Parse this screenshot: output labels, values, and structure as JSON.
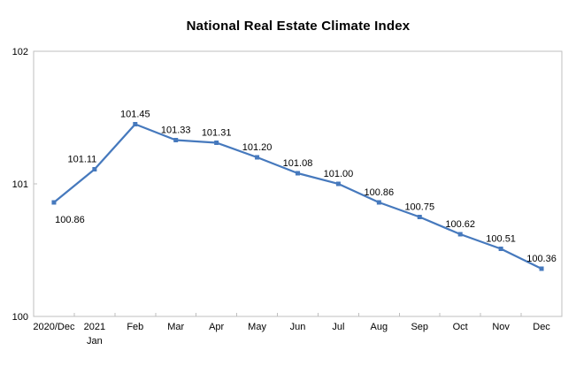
{
  "title": "National Real Estate Climate Index",
  "chart_data": {
    "type": "line",
    "title": "National Real Estate Climate Index",
    "categories": [
      "2020/Dec",
      "2021\nJan",
      "Feb",
      "Mar",
      "Apr",
      "May",
      "Jun",
      "Jul",
      "Aug",
      "Sep",
      "Oct",
      "Nov",
      "Dec"
    ],
    "values": [
      100.86,
      101.11,
      101.45,
      101.33,
      101.31,
      101.2,
      101.08,
      101.0,
      100.86,
      100.75,
      100.62,
      100.51,
      100.36
    ],
    "data_labels": [
      "100.86",
      "101.11",
      "101.45",
      "101.33",
      "101.31",
      "101.20",
      "101.08",
      "101.00",
      "100.86",
      "100.75",
      "100.62",
      "100.51",
      "100.36"
    ],
    "label_positions": [
      "below-right",
      "above-left",
      "above",
      "above",
      "above",
      "above",
      "above",
      "above",
      "above",
      "above",
      "above",
      "above",
      "above"
    ],
    "xlabel": "",
    "ylabel": "",
    "ylim": [
      100,
      102
    ],
    "yticks": [
      "100",
      "101",
      "102"
    ],
    "grid": false,
    "legend": "none",
    "line_color": "#4679BD",
    "marker": "square",
    "marker_size": 5,
    "axis_color": "#BFBFBF",
    "text_color": "#000000",
    "background_color": "#FFFFFF"
  }
}
